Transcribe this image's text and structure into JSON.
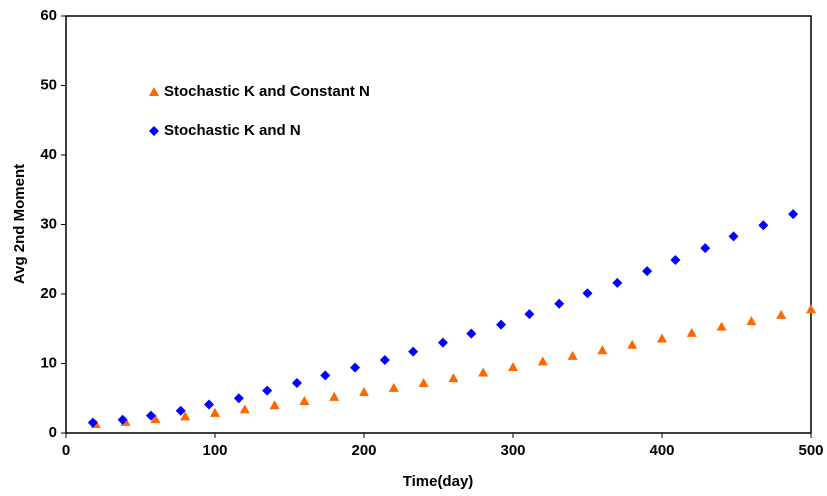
{
  "chart_data": {
    "type": "scatter",
    "x_label": "Time(day)",
    "y_label": "Avg 2nd Moment",
    "xlim": [
      0,
      500
    ],
    "ylim": [
      0,
      60
    ],
    "xticks": [
      0,
      100,
      200,
      300,
      400,
      500
    ],
    "yticks": [
      0,
      10,
      20,
      30,
      40,
      50,
      60
    ],
    "grid": false,
    "legend": "upper left",
    "series": [
      {
        "name": "Stochastic K and Constant N",
        "color": "#ff6600",
        "marker": "triangle",
        "x": [
          20,
          40,
          60,
          80,
          100,
          120,
          140,
          160,
          180,
          200,
          220,
          240,
          260,
          280,
          300,
          320,
          340,
          360,
          380,
          400,
          420,
          440,
          460,
          480,
          500
        ],
        "values": [
          1.3,
          1.6,
          2.0,
          2.4,
          2.9,
          3.4,
          4.0,
          4.6,
          5.2,
          5.9,
          6.5,
          7.2,
          7.9,
          8.7,
          9.5,
          10.3,
          11.1,
          11.9,
          12.7,
          13.6,
          14.4,
          15.3,
          16.1,
          17.0,
          17.8
        ]
      },
      {
        "name": "Stochastic K and N",
        "color": "#0000ff",
        "marker": "diamond",
        "x": [
          18,
          38,
          57,
          77,
          96,
          116,
          135,
          155,
          174,
          194,
          214,
          233,
          253,
          272,
          292,
          311,
          331,
          350,
          370,
          390,
          409,
          429,
          448,
          468,
          488
        ],
        "values": [
          1.5,
          1.9,
          2.5,
          3.2,
          4.1,
          5.0,
          6.1,
          7.2,
          8.3,
          9.4,
          10.5,
          11.7,
          13.0,
          14.3,
          15.6,
          17.1,
          18.6,
          20.1,
          21.6,
          23.3,
          24.9,
          26.6,
          28.3,
          29.9,
          31.5
        ]
      }
    ]
  }
}
